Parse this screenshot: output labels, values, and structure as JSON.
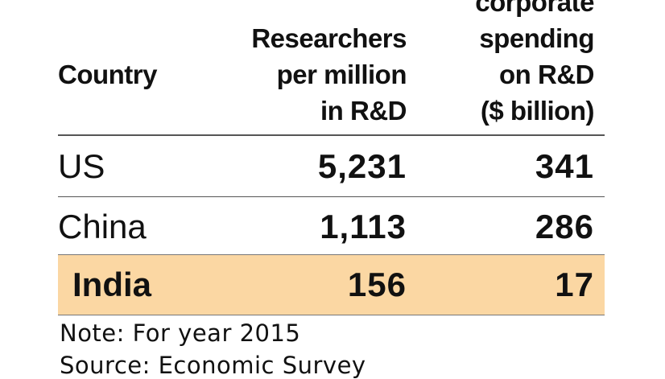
{
  "table": {
    "header": [
      [
        "Country"
      ],
      [
        "Researchers",
        "per million",
        "in R&D"
      ],
      [
        "corporate",
        "spending",
        "on R&D",
        "($ billion)"
      ]
    ],
    "rows": [
      [
        "US",
        "5,231",
        "341"
      ],
      [
        "China",
        "1,113",
        "286"
      ],
      [
        "India",
        "156",
        "17"
      ]
    ]
  },
  "note": "Note: For year 2015",
  "source": "Source: Economic Survey"
}
